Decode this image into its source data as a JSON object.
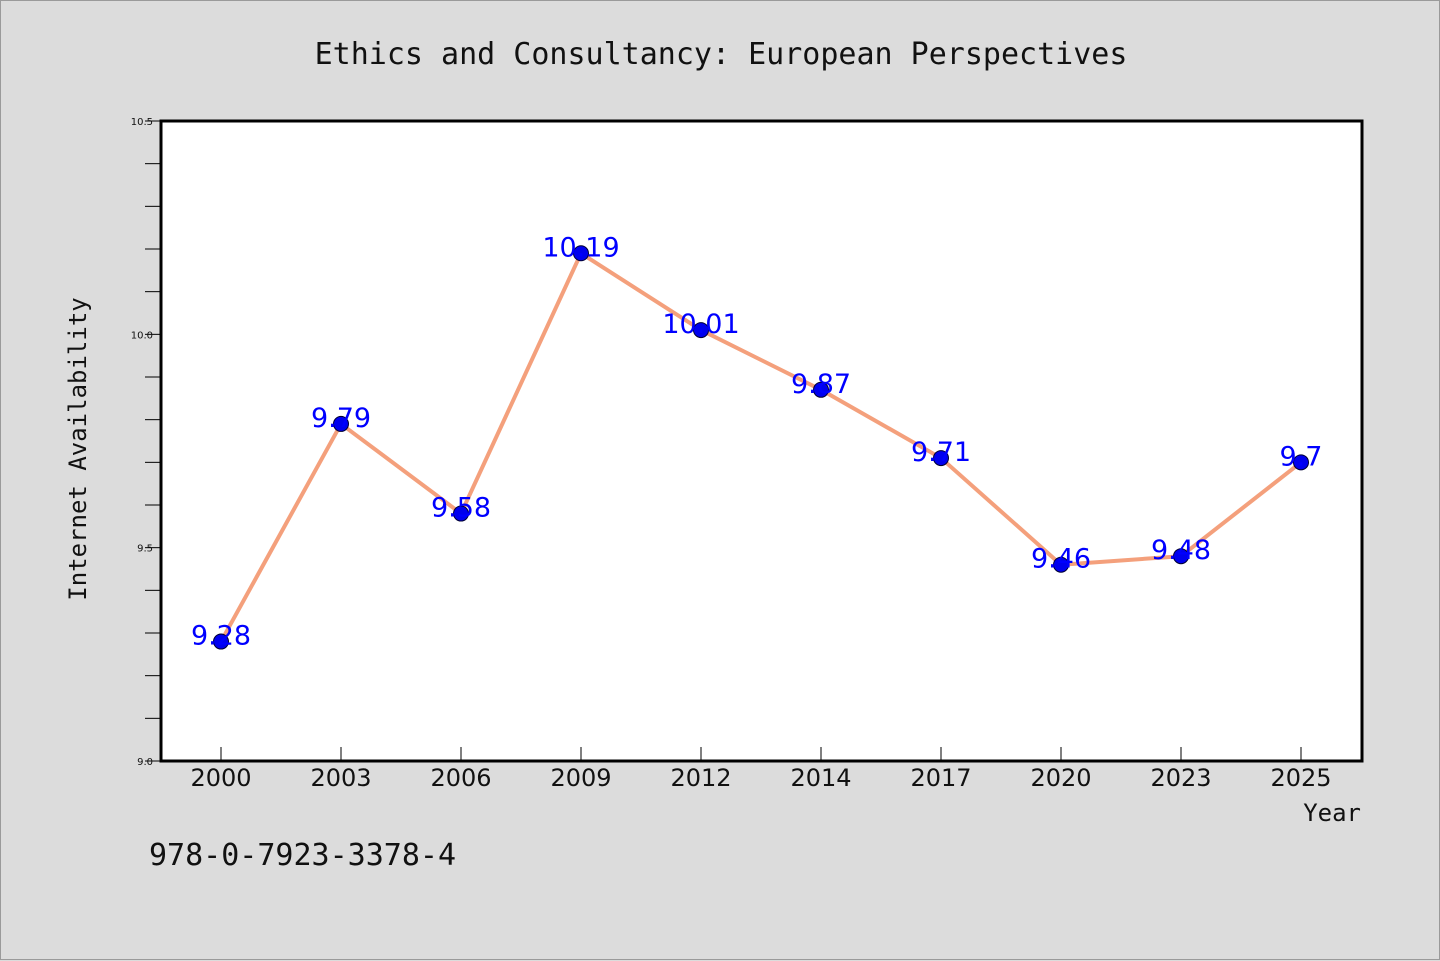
{
  "chart_data": {
    "type": "line",
    "title": "Ethics and Consultancy: European Perspectives",
    "xlabel": "Year",
    "ylabel": "Internet Availability",
    "categories": [
      "2000",
      "2003",
      "2006",
      "2009",
      "2012",
      "2014",
      "2017",
      "2020",
      "2023",
      "2025"
    ],
    "values": [
      9.28,
      9.79,
      9.58,
      10.19,
      10.01,
      9.87,
      9.71,
      9.46,
      9.48,
      9.7
    ],
    "data_labels": [
      "9.28",
      "9.79",
      "9.58",
      "10.19",
      "10.01",
      "9.87",
      "9.71",
      "9.46",
      "9.48",
      "9.7"
    ],
    "ylim": [
      9.0,
      10.5
    ],
    "yticks": [
      "9.0",
      "9.5",
      "10.0",
      "10.5"
    ],
    "yticks_values": [
      9.0,
      9.5,
      10.0,
      10.5
    ],
    "y_minor_step": 0.1,
    "grid": false,
    "legend": false,
    "colors": {
      "line": "#f4a07c",
      "marker": "#0000ee",
      "label": "#0000ff",
      "background": "#dcdcdc",
      "plot_background": "#ffffff"
    }
  },
  "footer": {
    "isbn": "978-0-7923-3378-4"
  }
}
